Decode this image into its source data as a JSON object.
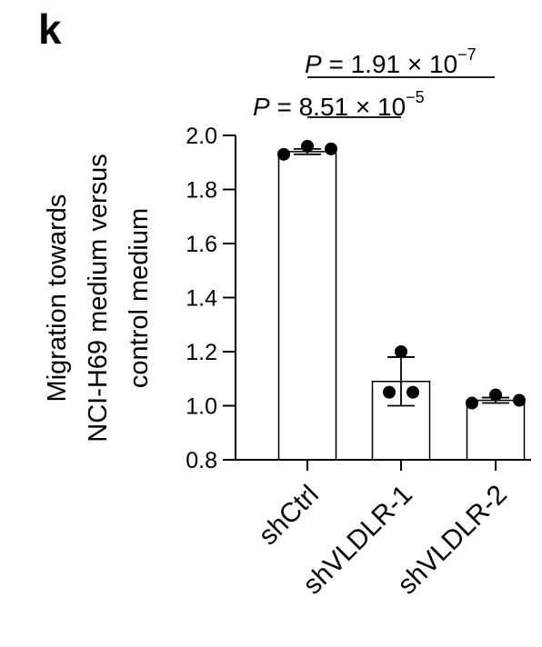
{
  "panel_label": "k",
  "chart_data": {
    "type": "bar",
    "categories": [
      "shCtrl",
      "shVLDLR-1",
      "shVLDLR-2"
    ],
    "values": [
      1.94,
      1.09,
      1.02
    ],
    "error": [
      0.01,
      0.09,
      0.01
    ],
    "points": [
      [
        1.93,
        1.96,
        1.95
      ],
      [
        1.2,
        1.05,
        1.05
      ],
      [
        1.01,
        1.04,
        1.02
      ]
    ],
    "ylabel_lines": [
      "Migration towards",
      "NCI-H69 medium versus",
      "control medium"
    ],
    "ylim": [
      0.8,
      2.0
    ],
    "yticks": [
      0.8,
      1.0,
      1.2,
      1.4,
      1.6,
      1.8,
      2.0
    ],
    "ytick_labels": [
      "0.8",
      "1.0",
      "1.2",
      "1.4",
      "1.6",
      "1.8",
      "2.0"
    ],
    "grid": false,
    "comparisons": [
      {
        "from": 0,
        "to": 1,
        "p_prefix": "P",
        "p_mantissa": "= 8.51 × 10",
        "p_exponent": "−5"
      },
      {
        "from": 0,
        "to": 2,
        "p_prefix": "P",
        "p_mantissa": "= 1.91 × 10",
        "p_exponent": "−7"
      }
    ]
  }
}
